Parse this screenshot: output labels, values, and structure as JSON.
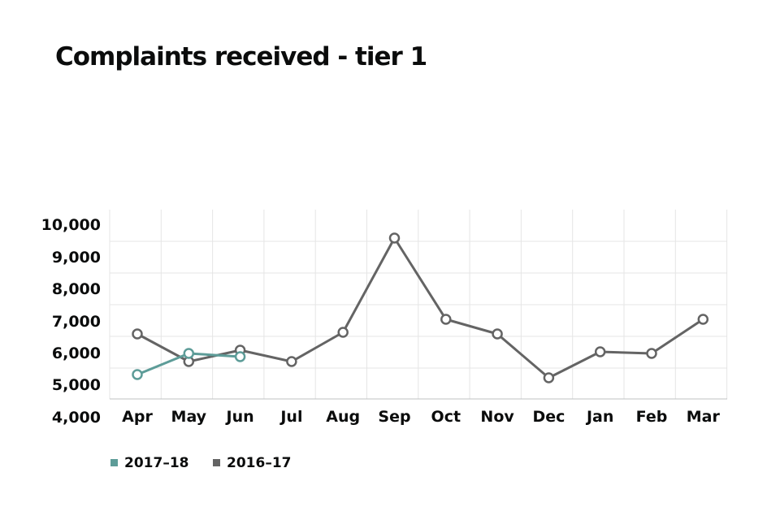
{
  "chart_data": {
    "type": "line",
    "title": "Complaints received - tier 1",
    "categories": [
      "Apr",
      "May",
      "Jun",
      "Jul",
      "Aug",
      "Sep",
      "Oct",
      "Nov",
      "Dec",
      "Jan",
      "Feb",
      "Mar"
    ],
    "y_ticks": [
      "10,000",
      "9,000",
      "8,000",
      "7,000",
      "6,000",
      "5,000",
      "4,000"
    ],
    "ylim": [
      4000,
      10000
    ],
    "grid": true,
    "legend_position": "bottom-left",
    "series": [
      {
        "name": "2017–18",
        "color": "#5d9c98",
        "values": [
          5400,
          6050,
          5950,
          null,
          null,
          null,
          null,
          null,
          null,
          null,
          null,
          null
        ]
      },
      {
        "name": "2016–17",
        "color": "#646464",
        "values": [
          6650,
          5800,
          6150,
          5800,
          6700,
          9600,
          7100,
          6650,
          5300,
          6100,
          6050,
          7100
        ]
      }
    ]
  }
}
